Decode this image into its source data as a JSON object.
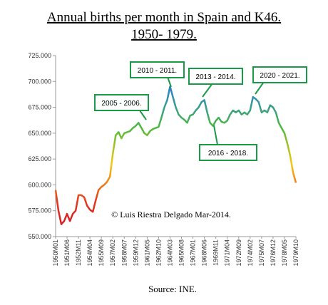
{
  "chart_data": {
    "type": "line",
    "title": [
      "Annual births per month in Spain and K46.",
      "1950- 1979."
    ],
    "source": "Source: INE.",
    "credit": "© Luis Riestra Delgado Mar-2014.",
    "annotations": [
      "2005 - 2006.",
      "2010 - 2011.",
      "2013 - 2014.",
      "2020 - 2021.",
      "2016 - 2018."
    ],
    "colors": [
      "#c8102e",
      "#e53a1e",
      "#f6c915",
      "#4cbb3c",
      "#2b86c5",
      "#1f6fb0"
    ],
    "categories": [
      "1950M01",
      null,
      null,
      null,
      "1951M06",
      null,
      null,
      null,
      "1952M11",
      null,
      null,
      null,
      "1954M04",
      null,
      null,
      null,
      "1955M09",
      null,
      null,
      null,
      "1957M02",
      null,
      null,
      null,
      "1958M07",
      null,
      null,
      null,
      "1959M12",
      null,
      null,
      null,
      "1961M05",
      null,
      null,
      null,
      "1962M10",
      null,
      null,
      null,
      "1964M03",
      null,
      null,
      null,
      "1965M08",
      null,
      null,
      null,
      "1967M01",
      null,
      null,
      null,
      "1968M06",
      null,
      null,
      null,
      "1969M11",
      null,
      null,
      null,
      "1971M04",
      null,
      null,
      null,
      "1972M09",
      null,
      null,
      null,
      "1974M02",
      null,
      null,
      null,
      "1975M07",
      null,
      null,
      null,
      "1976M12",
      null,
      null,
      null,
      "1978M05",
      null,
      null,
      null,
      "1979M10"
    ],
    "values": [
      595000,
      575000,
      562000,
      565000,
      572000,
      565000,
      572000,
      575000,
      590000,
      590000,
      588000,
      580000,
      576000,
      574000,
      585000,
      595000,
      598000,
      600000,
      603000,
      608000,
      630000,
      648000,
      651000,
      645000,
      650000,
      651000,
      652000,
      655000,
      657000,
      660000,
      655000,
      650000,
      648000,
      652000,
      654000,
      655000,
      656000,
      665000,
      675000,
      682000,
      695000,
      685000,
      675000,
      668000,
      665000,
      663000,
      660000,
      667000,
      668000,
      672000,
      675000,
      680000,
      682000,
      670000,
      660000,
      657000,
      662000,
      665000,
      661000,
      660000,
      662000,
      668000,
      672000,
      670000,
      672000,
      668000,
      670000,
      668000,
      672000,
      685000,
      683000,
      680000,
      670000,
      672000,
      670000,
      677000,
      675000,
      670000,
      660000,
      655000,
      650000,
      640000,
      628000,
      612000,
      602000
    ],
    "ylim": [
      550000,
      725000
    ],
    "yticks": [
      {
        "value": 550000,
        "label": "550.000"
      },
      {
        "value": 575000,
        "label": "575.000"
      },
      {
        "value": 600000,
        "label": "600.000"
      },
      {
        "value": 625000,
        "label": "625.000"
      },
      {
        "value": 650000,
        "label": "650.000"
      },
      {
        "value": 675000,
        "label": "675.000"
      },
      {
        "value": 700000,
        "label": "700.000"
      },
      {
        "value": 725000,
        "label": "725.000"
      }
    ]
  }
}
